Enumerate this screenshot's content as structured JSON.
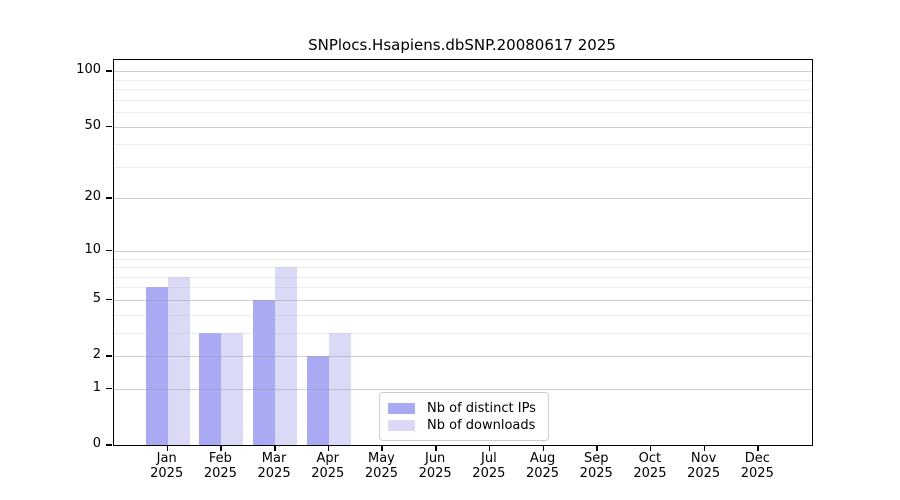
{
  "chart_data": {
    "type": "bar",
    "title": "SNPlocs.Hsapiens.dbSNP.20080617 2025",
    "categories": [
      "Jan",
      "Feb",
      "Mar",
      "Apr",
      "May",
      "Jun",
      "Jul",
      "Aug",
      "Sep",
      "Oct",
      "Nov",
      "Dec"
    ],
    "x_year_label": "2025",
    "series": [
      {
        "name": "Nb of distinct IPs",
        "color": "#a9a9f4",
        "values": [
          6,
          3,
          5,
          2,
          0,
          0,
          0,
          0,
          0,
          0,
          0,
          0
        ]
      },
      {
        "name": "Nb of downloads",
        "color": "#dadaf7",
        "values": [
          7,
          3,
          8,
          3,
          0,
          0,
          0,
          0,
          0,
          0,
          0,
          0
        ]
      }
    ],
    "scale": "log1p",
    "ylim": [
      0,
      115
    ],
    "y_ticks": [
      0,
      1,
      2,
      5,
      10,
      20,
      50,
      100
    ],
    "y_minor_ticks": [
      3,
      4,
      6,
      7,
      8,
      9,
      30,
      40,
      60,
      70,
      80,
      90
    ],
    "grid": "on",
    "legend_position": "lower-center-inside",
    "colors": {
      "axis": "#000000",
      "grid_major": "#d9d9d9",
      "grid_minor": "#ececec",
      "background": "#ffffff",
      "legend_border": "#cccccc"
    }
  }
}
